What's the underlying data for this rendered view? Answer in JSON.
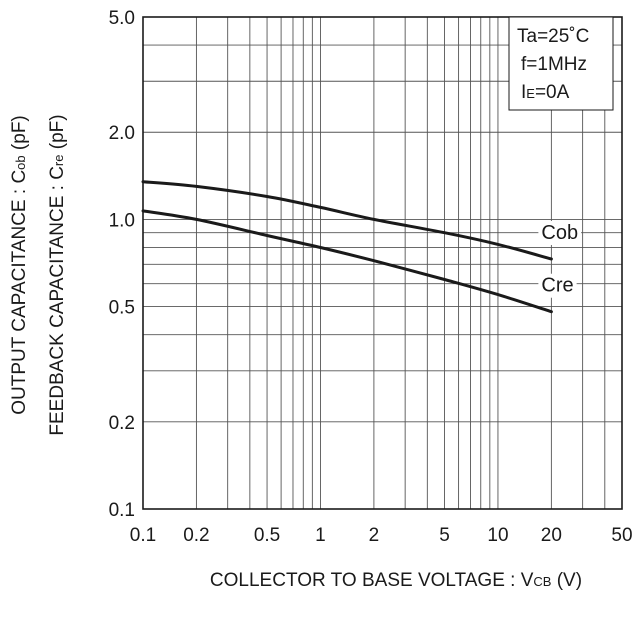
{
  "chart_data": {
    "type": "line",
    "x_scale": "log",
    "y_scale": "log",
    "xlim": [
      0.1,
      50
    ],
    "ylim": [
      0.1,
      5.0
    ],
    "x_ticks": [
      0.1,
      0.2,
      0.5,
      1,
      2,
      5,
      10,
      20,
      50
    ],
    "x_tick_labels": [
      "0.1",
      "0.2",
      "0.5",
      "1",
      "2",
      "5",
      "10",
      "20",
      "50"
    ],
    "y_ticks": [
      0.1,
      0.2,
      0.5,
      1.0,
      2.0,
      5.0
    ],
    "y_tick_labels": [
      "0.1",
      "0.2",
      "0.5",
      "1.0",
      "2.0",
      "5.0"
    ],
    "grid": true,
    "xlabel": {
      "main": "COLLECTOR  TO BASE VOLTAGE : V",
      "sub": "CB",
      "unit": " (V)"
    },
    "ylabel_1": {
      "main": "OUTPUT CAPACITANCE : C",
      "sub": "ob",
      "unit": " (pF)"
    },
    "ylabel_2": {
      "main": "FEEDBACK CAPACITANCE : C",
      "sub": "re",
      "unit": " (pF)"
    },
    "conditions": {
      "line1": "Ta=25˚C",
      "line2": "f=1MHz",
      "line3_main": "I",
      "line3_sub": "E",
      "line3_rest": "=0A",
      "position": "top-right"
    },
    "series": [
      {
        "name": "Cob",
        "x": [
          0.1,
          0.2,
          0.5,
          1,
          2,
          5,
          10,
          20
        ],
        "y": [
          1.35,
          1.3,
          1.2,
          1.1,
          1.0,
          0.9,
          0.82,
          0.73
        ]
      },
      {
        "name": "Cre",
        "x": [
          0.1,
          0.2,
          0.5,
          1,
          2,
          5,
          10,
          20
        ],
        "y": [
          1.07,
          1.0,
          0.88,
          0.8,
          0.72,
          0.62,
          0.55,
          0.48
        ]
      }
    ],
    "colors": {
      "line": "#1a1a1a",
      "grid": "#555555",
      "text": "#1a1a1a"
    }
  }
}
